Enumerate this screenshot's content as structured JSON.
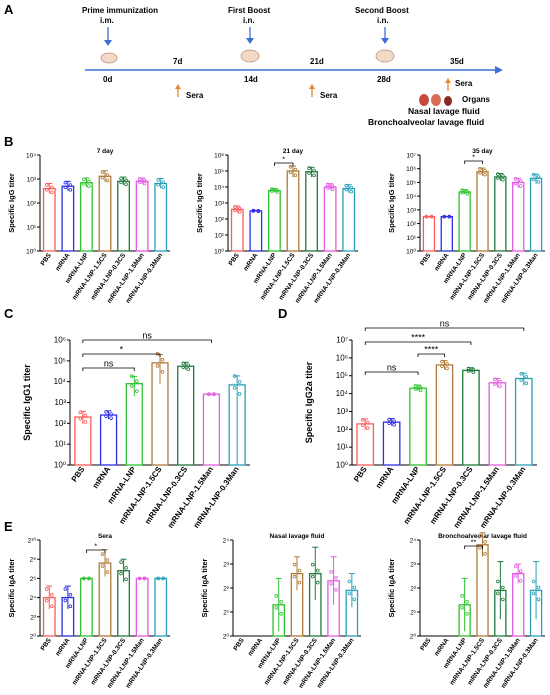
{
  "colors": {
    "PBS": "#ff5a5a",
    "mRNA": "#2e2ee6",
    "mRNA-LNP": "#2fc22f",
    "mRNA-LNP-1.5CS": "#b07a3a",
    "mRNA-LNP-0.3CS": "#1f7a3a",
    "mRNA-LNP-1.5Man": "#e35be3",
    "mRNA-LNP-0.3Man": "#2aa0b8",
    "timeline": "#3b6fd6",
    "arrow_blue": "#3b6fd6",
    "arrow_orange": "#e8882a"
  },
  "panelA": {
    "label": "A",
    "events": [
      {
        "title": "Prime immunization",
        "route": "i.m.",
        "day": "0d"
      },
      {
        "title": "First Boost",
        "route": "i.n.",
        "day": "14d"
      },
      {
        "title": "Second Boost",
        "route": "i.n.",
        "day": "28d"
      }
    ],
    "sera_days": [
      "7d",
      "21d",
      "35d"
    ],
    "sera_label": "Sera",
    "organs_label": "Organs",
    "nasal_label": "Nasal lavage fluid",
    "balf_label": "Bronchoalveolar lavage fluid"
  },
  "panel_labels": {
    "B": "B",
    "C": "C",
    "D": "D",
    "E": "E"
  },
  "ns": "ns",
  "star1": "*",
  "star2": "**",
  "star4": "****",
  "chart_data": [
    {
      "id": "B1",
      "type": "bar",
      "title": "7 day",
      "ylabel": "Specific IgG titer",
      "log_scale": true,
      "ylim": [
        1,
        10000
      ],
      "yticks": [
        "10⁰",
        "10¹",
        "10²",
        "10³",
        "10⁴"
      ],
      "categories": [
        "PBS",
        "mRNA",
        "mRNA-LNP",
        "mRNA-LNP-1.5CS",
        "mRNA-LNP-0.3CS",
        "mRNA-LNP-1.5Man",
        "mRNA-LNP-0.3Man"
      ],
      "values": [
        400,
        500,
        700,
        1300,
        800,
        800,
        650
      ],
      "err": [
        250,
        300,
        400,
        900,
        400,
        300,
        400
      ]
    },
    {
      "id": "B2",
      "type": "bar",
      "title": "21 day",
      "ylabel": "Specific IgG titer",
      "log_scale": true,
      "ylim": [
        1,
        1000000
      ],
      "yticks": [
        "10⁰",
        "10¹",
        "10²",
        "10³",
        "10⁴",
        "10⁵",
        "10⁶"
      ],
      "categories": [
        "PBS",
        "mRNA",
        "mRNA-LNP",
        "mRNA-LNP-1.5CS",
        "mRNA-LNP-0.3CS",
        "mRNA-LNP-1.5Man",
        "mRNA-LNP-0.3Man"
      ],
      "values": [
        400,
        320,
        6000,
        100000,
        90000,
        10000,
        8000
      ],
      "err": [
        250,
        30,
        2000,
        100000,
        80000,
        6000,
        6000
      ],
      "sig": "*"
    },
    {
      "id": "B3",
      "type": "bar",
      "title": "35 day",
      "ylabel": "Specific IgG titer",
      "log_scale": true,
      "ylim": [
        1,
        10000000
      ],
      "yticks": [
        "10⁰",
        "10¹",
        "10²",
        "10³",
        "10⁴",
        "10⁵",
        "10⁶",
        "10⁷"
      ],
      "categories": [
        "PBS",
        "mRNA",
        "mRNA-LNP",
        "mRNA-LNP-1.5CS",
        "mRNA-LNP-0.3CS",
        "mRNA-LNP-1.5Man",
        "mRNA-LNP-0.3Man"
      ],
      "values": [
        320,
        320,
        20000,
        600000,
        250000,
        100000,
        200000
      ],
      "err": [
        10,
        10,
        10000,
        500000,
        200000,
        100000,
        200000
      ],
      "sig": "*"
    },
    {
      "id": "C",
      "type": "bar",
      "ylabel": "Specific IgG1 titer",
      "log_scale": true,
      "ylim": [
        1,
        1000000
      ],
      "yticks": [
        "10⁰",
        "10¹",
        "10²",
        "10³",
        "10⁴",
        "10⁵",
        "10⁶"
      ],
      "categories": [
        "PBS",
        "mRNA",
        "mRNA-LNP",
        "mRNA-LNP-1.5CS",
        "mRNA-LNP-0.3CS",
        "mRNA-LNP-1.5Man",
        "mRNA-LNP-0.3Man"
      ],
      "values": [
        200,
        250,
        8000,
        80000,
        55000,
        2500,
        7000
      ],
      "err": [
        180,
        150,
        10000,
        120000,
        30000,
        0,
        12000
      ]
    },
    {
      "id": "D",
      "type": "bar",
      "ylabel": "Specific IgG2a titer",
      "log_scale": true,
      "ylim": [
        1,
        10000000
      ],
      "yticks": [
        "10⁰",
        "10¹",
        "10²",
        "10³",
        "10⁴",
        "10⁵",
        "10⁶",
        "10⁷"
      ],
      "categories": [
        "PBS",
        "mRNA",
        "mRNA-LNP",
        "mRNA-LNP-1.5CS",
        "mRNA-LNP-0.3CS",
        "mRNA-LNP-1.5Man",
        "mRNA-LNP-0.3Man"
      ],
      "values": [
        200,
        250,
        20000,
        400000,
        200000,
        40000,
        70000
      ],
      "err": [
        180,
        150,
        10000,
        300000,
        80000,
        30000,
        70000
      ]
    },
    {
      "id": "E1",
      "type": "bar",
      "title": "Sera",
      "ylabel": "Specific IgA titer",
      "log2_scale": true,
      "ylim_log2": [
        0,
        10
      ],
      "yticks": [
        "2⁰",
        "2²",
        "2⁴",
        "2⁶",
        "2⁸",
        "2¹⁰"
      ],
      "categories": [
        "PBS",
        "mRNA",
        "mRNA-LNP",
        "mRNA-LNP-1.5CS",
        "mRNA-LNP-0.3CS",
        "mRNA-LNP-1.5Man",
        "mRNA-LNP-0.3Man"
      ],
      "values_log2": [
        4,
        4,
        6,
        7.6,
        6.8,
        6,
        6
      ],
      "err_log2": [
        1.2,
        1.2,
        0,
        1.4,
        1.2,
        0,
        0
      ]
    },
    {
      "id": "E2",
      "type": "bar",
      "title": "Nasal lavage fluid",
      "ylabel": "Specific IgA titer",
      "log2_scale": true,
      "ylim_log2": [
        0,
        4
      ],
      "yticks": [
        "2⁰",
        "2¹",
        "2²",
        "2³",
        "2⁴"
      ],
      "categories": [
        "PBS",
        "mRNA",
        "mRNA-LNP",
        "mRNA-LNP-1.5CS",
        "mRNA-LNP-0.3CS",
        "mRNA-LNP-1.5Man",
        "mRNA-LNP-0.3Man"
      ],
      "values_log2": [
        0,
        0,
        1.3,
        2.6,
        2.6,
        2.3,
        1.9
      ],
      "err_log2": [
        0,
        0,
        1.1,
        0.7,
        1.1,
        1.0,
        0.7
      ]
    },
    {
      "id": "E3",
      "type": "bar",
      "title": "Bronchoalveolar lavage fluid",
      "ylabel": "Specific IgA titer",
      "log2_scale": true,
      "ylim_log2": [
        0,
        4
      ],
      "yticks": [
        "2⁰",
        "2¹",
        "2²",
        "2³",
        "2⁴"
      ],
      "categories": [
        "PBS",
        "mRNA",
        "mRNA-LNP",
        "mRNA-LNP-1.5CS",
        "mRNA-LNP-0.3CS",
        "mRNA-LNP-1.5Man",
        "mRNA-LNP-0.3Man"
      ],
      "values_log2": [
        0,
        0,
        1.3,
        3.8,
        1.9,
        2.6,
        1.9
      ],
      "err_log2": [
        0,
        0,
        1.1,
        0.5,
        1.2,
        0.4,
        1.2
      ],
      "sig": "**"
    }
  ]
}
